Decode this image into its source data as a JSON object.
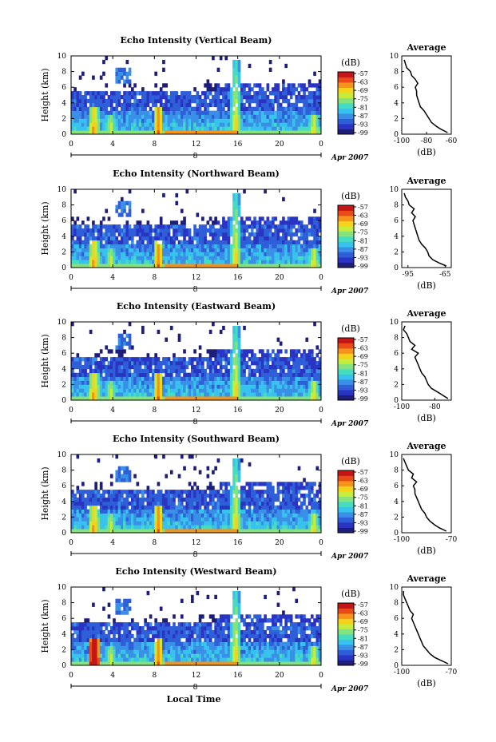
{
  "figure": {
    "xlabel": "Local Time",
    "height_label": "Height (km)",
    "date_label": "Apr 2007",
    "date_tick": "8",
    "colorbar_unit": "(dB)",
    "avg_title": "Average",
    "avg_xlabel": "(dB)",
    "colorbar_colors": [
      "#1f1d7a",
      "#2a34c2",
      "#2f5fd8",
      "#3a8fe6",
      "#38c3ee",
      "#46dcc2",
      "#86e27a",
      "#c7ec3c",
      "#f5d21c",
      "#f5931a",
      "#ea4a1a",
      "#c41616"
    ]
  },
  "chart_data": [
    {
      "type": "heatmap",
      "title": "Echo Intensity (Vertical Beam)",
      "xlabel": "Local Time",
      "ylabel": "Height (km)",
      "xlim": [
        0,
        24
      ],
      "ylim": [
        0,
        10
      ],
      "x_ticks": [
        "0",
        "4",
        "8",
        "12",
        "16",
        "20",
        "0"
      ],
      "y_ticks": [
        "0",
        "2",
        "4",
        "6",
        "8",
        "10"
      ],
      "colorbar_ticks": [
        "-57",
        "-63",
        "-69",
        "-75",
        "-81",
        "-87",
        "-93",
        "-99"
      ],
      "average_profile": {
        "xlim": [
          -100,
          -60
        ],
        "x_ticks": [
          "-100",
          "-80",
          "-60"
        ],
        "heights_km": [
          0.2,
          0.6,
          1.0,
          1.5,
          2.0,
          2.5,
          3.0,
          3.5,
          4.0,
          4.5,
          5.0,
          5.5,
          6.0,
          6.5,
          7.0,
          7.5,
          8.0,
          8.5,
          9.0,
          9.5
        ],
        "dB": [
          -63,
          -68,
          -72,
          -76,
          -78,
          -80,
          -82,
          -85,
          -86,
          -87,
          -88,
          -88,
          -89,
          -87,
          -89,
          -92,
          -93,
          -96,
          -97,
          -98
        ]
      }
    },
    {
      "type": "heatmap",
      "title": "Echo Intensity (Northward Beam)",
      "xlabel": "Local Time",
      "ylabel": "Height (km)",
      "xlim": [
        0,
        24
      ],
      "ylim": [
        0,
        10
      ],
      "x_ticks": [
        "0",
        "4",
        "8",
        "12",
        "16",
        "20",
        "0"
      ],
      "y_ticks": [
        "0",
        "2",
        "4",
        "6",
        "8",
        "10"
      ],
      "colorbar_ticks": [
        "-57",
        "-63",
        "-69",
        "-75",
        "-81",
        "-87",
        "-93",
        "-99"
      ],
      "average_profile": {
        "xlim": [
          -100,
          -60
        ],
        "x_ticks": [
          "-95",
          "-65"
        ],
        "heights_km": [
          0.2,
          0.6,
          1.0,
          1.5,
          2.0,
          2.5,
          3.0,
          3.5,
          4.0,
          4.5,
          5.0,
          5.5,
          6.0,
          6.5,
          7.0,
          7.5,
          8.0,
          8.5,
          9.0,
          9.5
        ],
        "dB": [
          -64,
          -70,
          -75,
          -78,
          -79,
          -81,
          -84,
          -86,
          -87,
          -88,
          -89,
          -90,
          -91,
          -89,
          -92,
          -90,
          -94,
          -95,
          -97,
          -98
        ]
      }
    },
    {
      "type": "heatmap",
      "title": "Echo Intensity (Eastward Beam)",
      "xlabel": "Local Time",
      "ylabel": "Height (km)",
      "xlim": [
        0,
        24
      ],
      "ylim": [
        0,
        10
      ],
      "x_ticks": [
        "0",
        "4",
        "8",
        "12",
        "16",
        "20",
        "0"
      ],
      "y_ticks": [
        "0",
        "2",
        "4",
        "6",
        "8",
        "10"
      ],
      "colorbar_ticks": [
        "-57",
        "-63",
        "-69",
        "-75",
        "-81",
        "-87",
        "-93",
        "-99"
      ],
      "average_profile": {
        "xlim": [
          -100,
          -70
        ],
        "x_ticks": [
          "-100",
          "-80"
        ],
        "heights_km": [
          0.2,
          0.6,
          1.0,
          1.5,
          2.0,
          2.5,
          3.0,
          3.5,
          4.0,
          4.5,
          5.0,
          5.5,
          6.0,
          6.5,
          7.0,
          7.5,
          8.0,
          8.5,
          9.0,
          9.5
        ],
        "dB": [
          -72,
          -75,
          -78,
          -82,
          -84,
          -85,
          -86,
          -88,
          -89,
          -90,
          -91,
          -92,
          -90,
          -94,
          -92,
          -95,
          -96,
          -97,
          -99,
          -98
        ]
      }
    },
    {
      "type": "heatmap",
      "title": "Echo Intensity (Southward Beam)",
      "xlabel": "Local Time",
      "ylabel": "Height (km)",
      "xlim": [
        0,
        24
      ],
      "ylim": [
        0,
        10
      ],
      "x_ticks": [
        "0",
        "4",
        "8",
        "12",
        "16",
        "20",
        "0"
      ],
      "y_ticks": [
        "0",
        "2",
        "4",
        "6",
        "8",
        "10"
      ],
      "colorbar_ticks": [
        "-57",
        "-63",
        "-69",
        "-75",
        "-81",
        "-87",
        "-93",
        "-99"
      ],
      "average_profile": {
        "xlim": [
          -100,
          -70
        ],
        "x_ticks": [
          "-100",
          "-70"
        ],
        "heights_km": [
          0.2,
          0.6,
          1.0,
          1.5,
          2.0,
          2.5,
          3.0,
          3.5,
          4.0,
          4.5,
          5.0,
          5.5,
          6.0,
          6.5,
          7.0,
          7.5,
          8.0,
          8.5,
          9.0,
          9.5
        ],
        "dB": [
          -73,
          -77,
          -80,
          -83,
          -85,
          -86,
          -88,
          -89,
          -90,
          -91,
          -92,
          -92,
          -93,
          -91,
          -94,
          -93,
          -96,
          -97,
          -98,
          -99
        ]
      }
    },
    {
      "type": "heatmap",
      "title": "Echo Intensity (Westward Beam)",
      "xlabel": "Local Time",
      "ylabel": "Height (km)",
      "xlim": [
        0,
        24
      ],
      "ylim": [
        0,
        10
      ],
      "x_ticks": [
        "0",
        "4",
        "8",
        "12",
        "16",
        "20",
        "0"
      ],
      "y_ticks": [
        "0",
        "2",
        "4",
        "6",
        "8",
        "10"
      ],
      "colorbar_ticks": [
        "-57",
        "-63",
        "-69",
        "-75",
        "-81",
        "-87",
        "-93",
        "-99"
      ],
      "average_profile": {
        "xlim": [
          -100,
          -70
        ],
        "x_ticks": [
          "-100",
          "-70"
        ],
        "heights_km": [
          0.2,
          0.6,
          1.0,
          1.5,
          2.0,
          2.5,
          3.0,
          3.5,
          4.0,
          4.5,
          5.0,
          5.5,
          6.0,
          6.5,
          7.0,
          7.5,
          8.0,
          8.5,
          9.0,
          9.5
        ],
        "dB": [
          -72,
          -76,
          -80,
          -83,
          -85,
          -87,
          -88,
          -89,
          -90,
          -91,
          -92,
          -93,
          -94,
          -93,
          -95,
          -96,
          -97,
          -98,
          -99,
          -99
        ]
      }
    }
  ]
}
